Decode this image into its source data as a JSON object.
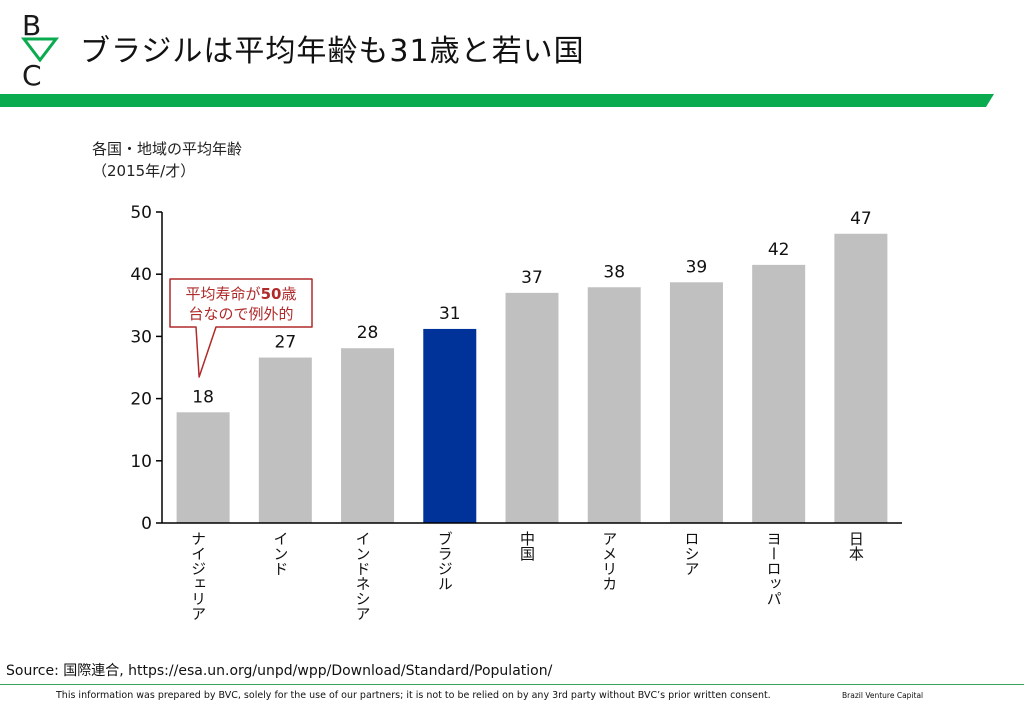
{
  "header": {
    "title": "ブラジルは平均年齢も31歳と若い国",
    "brand_letters": [
      "B",
      "V",
      "C"
    ]
  },
  "colors": {
    "green": "#0aab4f",
    "bar_gray": "#c0c0c0",
    "highlight": "#003399",
    "callout_red": "#b02a2a"
  },
  "chart_heading": {
    "line1": "各国・地域の平均年齢",
    "line2": "（2015年/才）"
  },
  "chart_data": {
    "type": "bar",
    "categories": [
      "ナイジェリア",
      "インド",
      "インドネシア",
      "ブラジル",
      "中国",
      "アメリカ",
      "ロシア",
      "ヨーロッパ",
      "日本"
    ],
    "values": [
      17.8,
      26.6,
      28.1,
      31.2,
      37.0,
      37.9,
      38.7,
      41.5,
      46.5
    ],
    "labels": [
      "18",
      "27",
      "28",
      "31",
      "37",
      "38",
      "39",
      "42",
      "47"
    ],
    "highlight_index": 3,
    "ylim": [
      0,
      50
    ],
    "yticks": [
      0,
      10,
      20,
      30,
      40,
      50
    ],
    "title": "各国・地域の平均年齢",
    "xlabel": "",
    "ylabel": "",
    "annotation": {
      "line1_prefix": "平均寿命が",
      "line1_number": "50",
      "line1_suffix": "歳",
      "line2": "台なので例外的",
      "target_index": 0
    }
  },
  "footer": {
    "source": "Source: 国際連合, https://esa.un.org/unpd/wpp/Download/Standard/Population/",
    "disclaimer": "This information was prepared by BVC, solely for the use of our partners; it is not to be relied on by any 3rd party without BVC’s prior written consent.",
    "brand": "Brazil Venture Capital"
  }
}
